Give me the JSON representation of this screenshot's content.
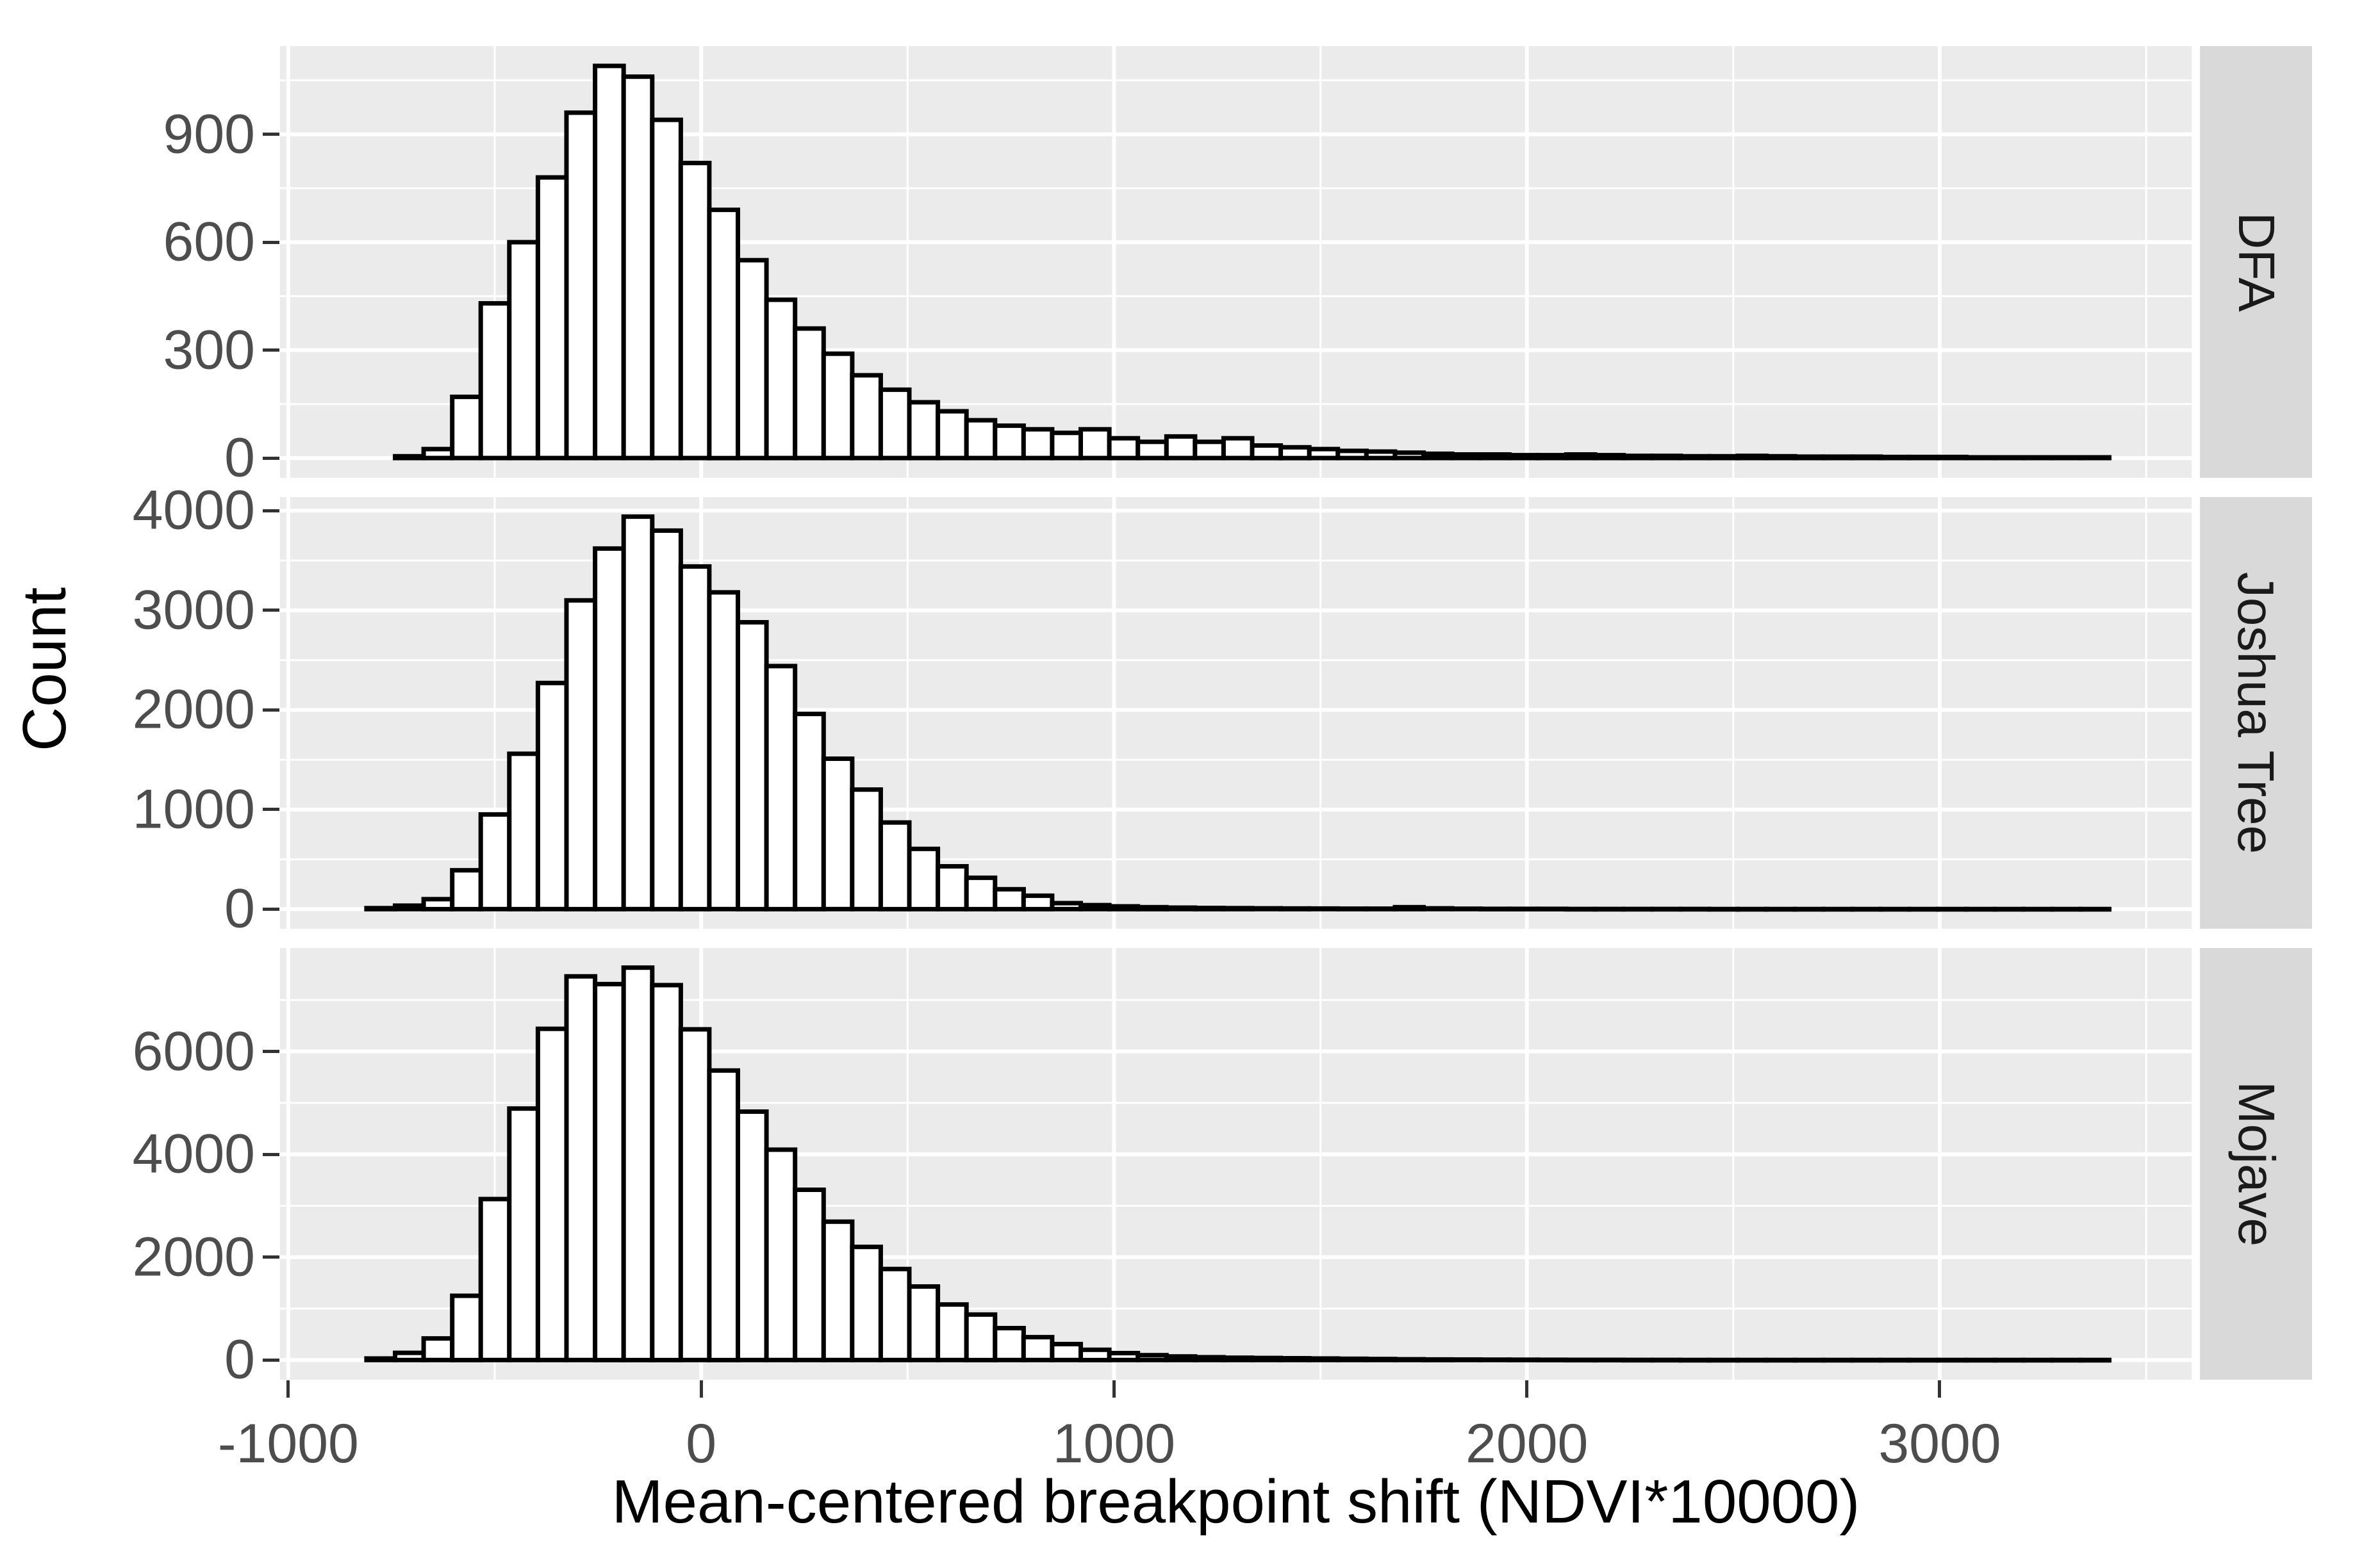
{
  "figure": {
    "y_axis_title": "Count",
    "x_axis_title": "Mean-centered breakpoint shift (NDVI*10000)"
  },
  "colors": {
    "panel_bg": "#EBEBEB",
    "strip_bg": "#D9D9D9",
    "gridline": "#FFFFFF",
    "bar_fill": "#FFFFFF",
    "bar_stroke": "#000000",
    "tick_label": "#4D4D4D",
    "axis_title": "#000000",
    "strip_label": "#1A1A1A",
    "tick_mark": "#333333"
  },
  "chart_data": {
    "type": "bar",
    "subtype": "faceted-histogram",
    "title": "",
    "xlabel": "Mean-centered breakpoint shift (NDVI*10000)",
    "ylabel": "Count",
    "legend": "none",
    "grid": "on",
    "xlim": [
      -1020,
      3610
    ],
    "x_major_ticks": [
      -1000,
      0,
      1000,
      2000,
      3000
    ],
    "x_tick_labels": [
      "-1000",
      "0",
      "1000",
      "2000",
      "3000"
    ],
    "x_minor_gridlines": [
      -500,
      500,
      1500,
      2500,
      3500
    ],
    "bin_start_center": -776,
    "bin_width": 69.2,
    "facets": [
      {
        "label": "DFA",
        "ylim": [
          -55,
          1145
        ],
        "y_major_ticks": [
          0,
          300,
          600,
          900
        ],
        "y_tick_labels": [
          "0",
          "300",
          "600",
          "900"
        ],
        "y_minor_gridlines": [
          150,
          450,
          750,
          1050
        ],
        "counts": [
          0,
          5,
          25,
          170,
          430,
          600,
          780,
          960,
          1090,
          1060,
          940,
          820,
          690,
          550,
          440,
          360,
          290,
          230,
          190,
          155,
          130,
          105,
          90,
          80,
          70,
          80,
          55,
          45,
          60,
          45,
          55,
          35,
          30,
          25,
          20,
          18,
          15,
          12,
          10,
          10,
          8,
          8,
          10,
          8,
          6,
          6,
          5,
          5,
          6,
          5,
          4,
          4,
          4,
          3,
          3,
          3,
          2,
          2,
          2,
          2,
          2
        ]
      },
      {
        "label": "Joshua Tree",
        "ylim": [
          -197,
          4137
        ],
        "y_major_ticks": [
          0,
          1000,
          2000,
          3000,
          4000
        ],
        "y_tick_labels": [
          "0",
          "1000",
          "2000",
          "3000",
          "4000"
        ],
        "y_minor_gridlines": [
          500,
          1500,
          2500,
          3500
        ],
        "counts": [
          10,
          35,
          100,
          390,
          950,
          1560,
          2270,
          3100,
          3620,
          3940,
          3800,
          3440,
          3180,
          2880,
          2440,
          1960,
          1510,
          1200,
          870,
          605,
          430,
          315,
          200,
          135,
          60,
          40,
          28,
          20,
          15,
          12,
          10,
          8,
          7,
          6,
          5,
          5,
          20,
          8,
          4,
          3,
          3,
          3,
          2,
          2,
          2,
          2,
          2,
          1,
          1,
          1,
          1,
          1,
          1,
          1,
          1,
          1,
          1,
          1,
          1,
          1,
          1
        ]
      },
      {
        "label": "Mojave",
        "ylim": [
          -382,
          8012
        ],
        "y_major_ticks": [
          0,
          2000,
          4000,
          6000
        ],
        "y_tick_labels": [
          "0",
          "2000",
          "4000",
          "6000"
        ],
        "y_minor_gridlines": [
          1000,
          3000,
          5000,
          7000
        ],
        "counts": [
          30,
          140,
          420,
          1250,
          3130,
          4890,
          6440,
          7460,
          7310,
          7630,
          7290,
          6430,
          5630,
          4830,
          4090,
          3310,
          2690,
          2200,
          1770,
          1430,
          1080,
          885,
          620,
          445,
          310,
          200,
          135,
          95,
          70,
          55,
          45,
          40,
          35,
          30,
          25,
          20,
          15,
          12,
          10,
          8,
          6,
          5,
          4,
          4,
          3,
          3,
          2,
          2,
          2,
          2,
          2,
          1,
          1,
          1,
          1,
          1,
          1,
          1,
          1,
          1,
          1
        ]
      }
    ]
  }
}
